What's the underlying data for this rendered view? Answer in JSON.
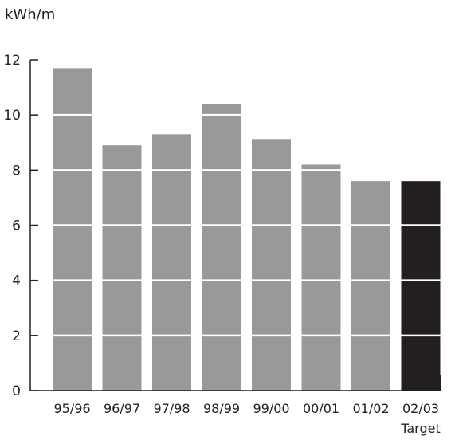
{
  "chart_data": {
    "type": "bar",
    "ylabel": "kWh/m",
    "xlabel": "",
    "title": "",
    "categories": [
      "95/96",
      "96/97",
      "97/98",
      "98/99",
      "99/00",
      "00/01",
      "01/02",
      "02/03"
    ],
    "category_sublabels": [
      "",
      "",
      "",
      "",
      "",
      "",
      "",
      "Target"
    ],
    "values": [
      11.7,
      8.9,
      9.3,
      10.4,
      9.1,
      8.2,
      7.6,
      7.6
    ],
    "highlight_index": 7,
    "ylim": [
      0,
      12
    ],
    "yticks": [
      0,
      2,
      4,
      6,
      8,
      10,
      12
    ],
    "grid": "white lines across bars",
    "colors": {
      "bar": "#999999",
      "highlight": "#231f20",
      "axis": "#231f20",
      "gridline": "#ffffff"
    }
  }
}
